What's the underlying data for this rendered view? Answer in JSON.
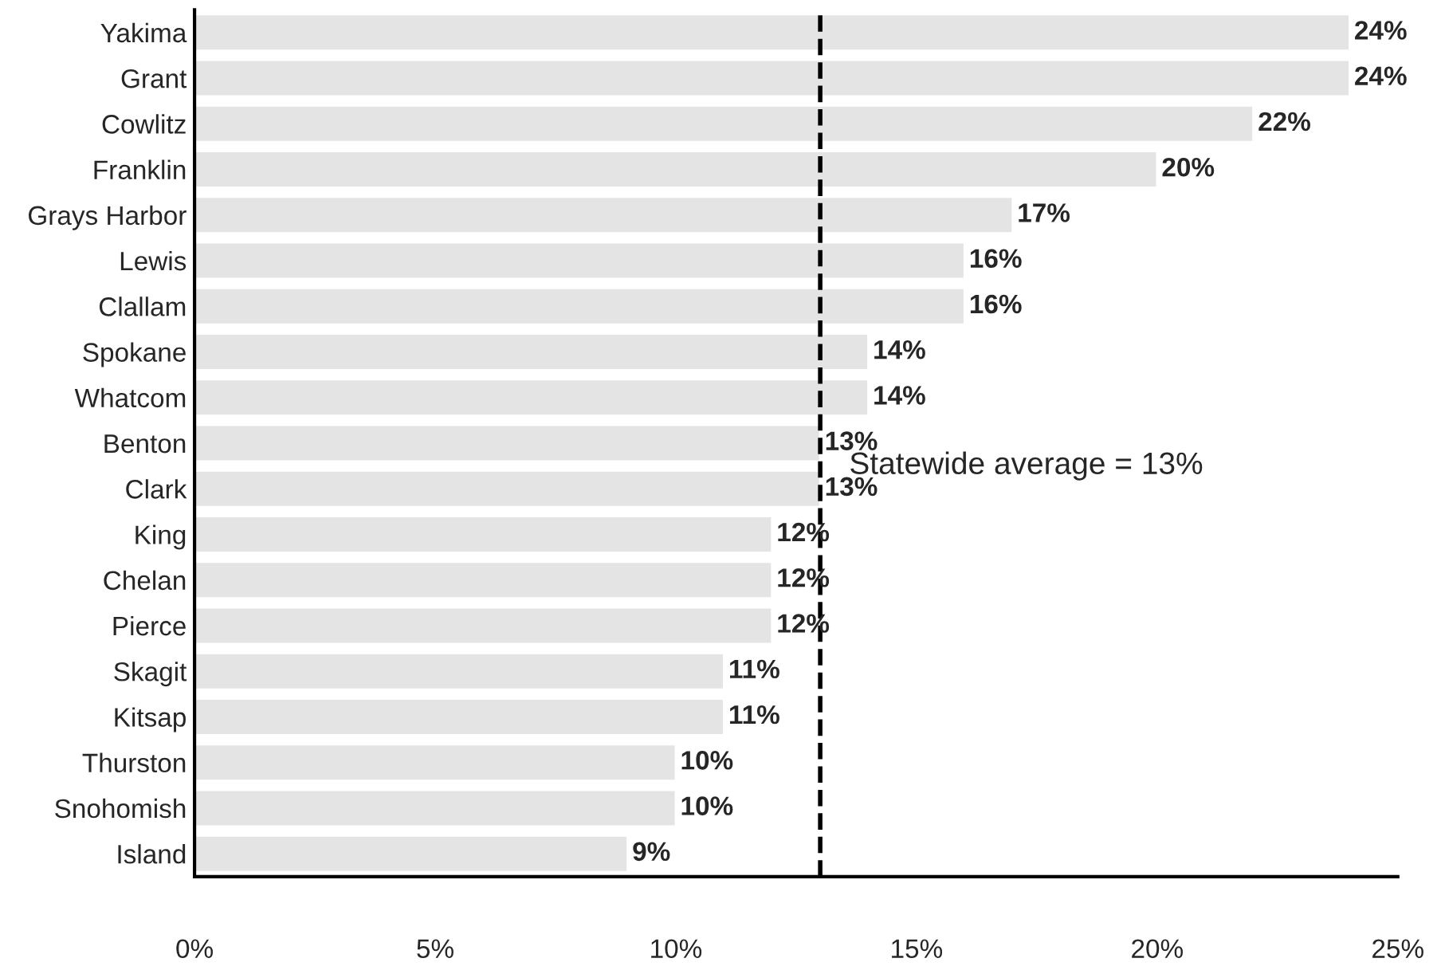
{
  "chart_data": {
    "type": "bar",
    "orientation": "horizontal",
    "categories": [
      "Yakima",
      "Grant",
      "Cowlitz",
      "Franklin",
      "Grays Harbor",
      "Lewis",
      "Clallam",
      "Spokane",
      "Whatcom",
      "Benton",
      "Clark",
      "King",
      "Chelan",
      "Pierce",
      "Skagit",
      "Kitsap",
      "Thurston",
      "Snohomish",
      "Island"
    ],
    "values": [
      24,
      24,
      22,
      20,
      17,
      16,
      16,
      14,
      14,
      13,
      13,
      12,
      12,
      12,
      11,
      11,
      10,
      10,
      9
    ],
    "value_labels": [
      "24%",
      "24%",
      "22%",
      "20%",
      "17%",
      "16%",
      "16%",
      "14%",
      "14%",
      "13%",
      "13%",
      "12%",
      "12%",
      "12%",
      "11%",
      "11%",
      "10%",
      "10%",
      "9%"
    ],
    "color": "#e4e4e4",
    "xlim": [
      0,
      25
    ],
    "xticks": [
      {
        "value": 0,
        "label": "0%"
      },
      {
        "value": 5,
        "label": "5%"
      },
      {
        "value": 10,
        "label": "10%"
      },
      {
        "value": 15,
        "label": "15%"
      },
      {
        "value": 20,
        "label": "20%"
      },
      {
        "value": 25,
        "label": "25%"
      }
    ],
    "ref_lines": [
      {
        "axis": "x",
        "value": 13,
        "label": "Statewide average = 13%",
        "color": "#000000",
        "line_style": "dashed"
      }
    ],
    "grid": false,
    "legend": false
  }
}
